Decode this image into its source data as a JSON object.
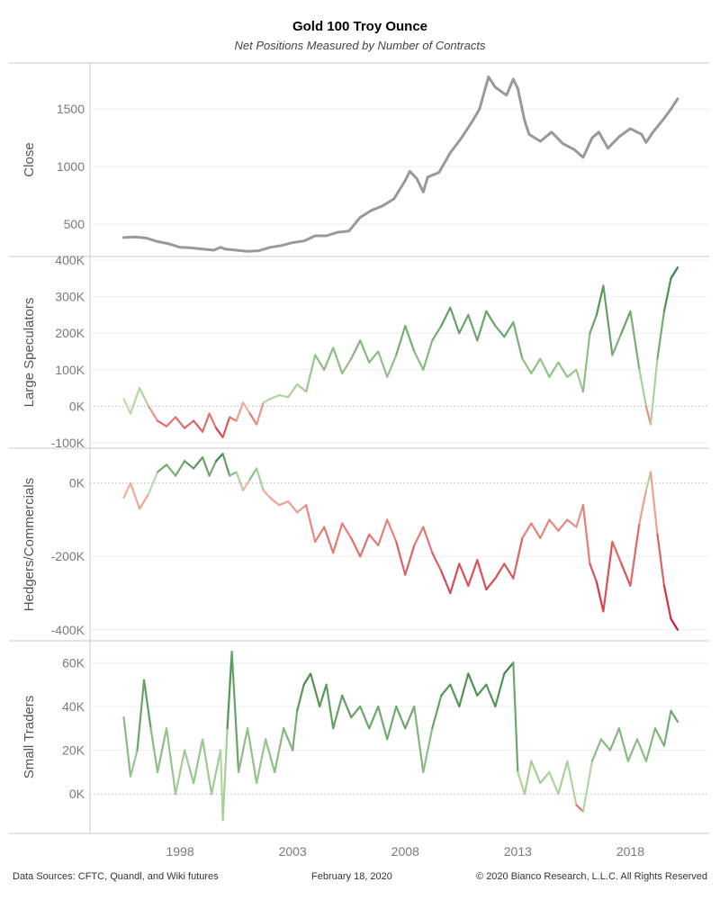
{
  "title": "Gold 100 Troy Ounce",
  "subtitle": "Net Positions Measured by Number of Contracts",
  "footer": {
    "sources": "Data Sources: CFTC, Quandl, and Wiki futures",
    "date": "February 18, 2020",
    "copyright": "© 2020 Bianco Research, L.L.C. All Rights Reserved"
  },
  "colors": {
    "close_line": "#999999",
    "positive_light": "#b9dba8",
    "positive_dark": "#2a7a38",
    "negative_light": "#f4b7a0",
    "negative_dark": "#c9142c",
    "zero_line": "#bbbbbb"
  },
  "chart_data": [
    {
      "type": "line",
      "ylabel": "Close",
      "ylim": [
        220,
        1900
      ],
      "yticks": [
        500,
        1000,
        1500
      ],
      "ytick_labels": [
        "500",
        "1000",
        "1500"
      ],
      "xticks": [
        1998,
        2003,
        2008,
        2013,
        2018
      ],
      "xtick_labels": [
        "1998",
        "2003",
        "2008",
        "2013",
        "2018"
      ],
      "grid": true,
      "color_mode": "solid",
      "x": [
        1995.5,
        1996.0,
        1996.5,
        1997.0,
        1997.5,
        1998.0,
        1998.5,
        1999.0,
        1999.5,
        1999.8,
        2000.0,
        2000.5,
        2001.0,
        2001.5,
        2002.0,
        2002.5,
        2003.0,
        2003.5,
        2004.0,
        2004.5,
        2005.0,
        2005.5,
        2006.0,
        2006.5,
        2007.0,
        2007.5,
        2008.0,
        2008.2,
        2008.5,
        2008.8,
        2009.0,
        2009.5,
        2010.0,
        2010.5,
        2011.0,
        2011.3,
        2011.7,
        2012.0,
        2012.5,
        2012.8,
        2013.0,
        2013.3,
        2013.5,
        2014.0,
        2014.5,
        2015.0,
        2015.5,
        2015.9,
        2016.3,
        2016.6,
        2017.0,
        2017.5,
        2018.0,
        2018.5,
        2018.7,
        2019.0,
        2019.5,
        2019.8,
        2020.1
      ],
      "y": [
        385,
        390,
        380,
        350,
        330,
        300,
        295,
        285,
        275,
        300,
        285,
        275,
        265,
        270,
        300,
        315,
        340,
        355,
        400,
        400,
        430,
        440,
        560,
        620,
        660,
        720,
        880,
        960,
        900,
        780,
        910,
        950,
        1120,
        1250,
        1400,
        1500,
        1780,
        1690,
        1620,
        1760,
        1680,
        1400,
        1280,
        1220,
        1300,
        1200,
        1150,
        1080,
        1250,
        1300,
        1160,
        1260,
        1330,
        1280,
        1210,
        1300,
        1420,
        1500,
        1590
      ]
    },
    {
      "type": "line",
      "ylabel": "Large Speculators",
      "ylim": [
        -115000,
        410000
      ],
      "yticks": [
        -100000,
        0,
        100000,
        200000,
        300000,
        400000
      ],
      "ytick_labels": [
        "-100K",
        "0K",
        "100K",
        "200K",
        "300K",
        "400K"
      ],
      "xticks": [
        1998,
        2003,
        2008,
        2013,
        2018
      ],
      "grid": true,
      "color_mode": "diverging",
      "color_domain": [
        -100000,
        400000
      ],
      "x": [
        1995.5,
        1995.8,
        1996.2,
        1996.6,
        1997.0,
        1997.4,
        1997.8,
        1998.2,
        1998.6,
        1999.0,
        1999.3,
        1999.6,
        1999.9,
        2000.2,
        2000.5,
        2000.8,
        2001.1,
        2001.4,
        2001.7,
        2002.0,
        2002.4,
        2002.8,
        2003.2,
        2003.6,
        2004.0,
        2004.4,
        2004.8,
        2005.2,
        2005.6,
        2006.0,
        2006.4,
        2006.8,
        2007.2,
        2007.6,
        2008.0,
        2008.4,
        2008.8,
        2009.2,
        2009.6,
        2010.0,
        2010.4,
        2010.8,
        2011.2,
        2011.6,
        2012.0,
        2012.4,
        2012.8,
        2013.2,
        2013.6,
        2014.0,
        2014.4,
        2014.8,
        2015.2,
        2015.6,
        2015.9,
        2016.2,
        2016.5,
        2016.8,
        2017.2,
        2017.6,
        2018.0,
        2018.4,
        2018.7,
        2018.9,
        2019.2,
        2019.5,
        2019.8,
        2020.1
      ],
      "y": [
        20000,
        -20000,
        50000,
        0,
        -40000,
        -55000,
        -30000,
        -60000,
        -40000,
        -70000,
        -20000,
        -60000,
        -85000,
        -30000,
        -40000,
        10000,
        -20000,
        -50000,
        10000,
        20000,
        30000,
        25000,
        60000,
        40000,
        140000,
        100000,
        160000,
        90000,
        130000,
        180000,
        120000,
        150000,
        80000,
        140000,
        220000,
        150000,
        100000,
        180000,
        220000,
        270000,
        200000,
        250000,
        180000,
        260000,
        220000,
        190000,
        230000,
        130000,
        90000,
        130000,
        80000,
        120000,
        80000,
        100000,
        40000,
        200000,
        250000,
        330000,
        140000,
        200000,
        260000,
        100000,
        0,
        -50000,
        130000,
        260000,
        350000,
        380000
      ]
    },
    {
      "type": "line",
      "ylabel": "Hedgers/Commercials",
      "ylim": [
        -430000,
        95000
      ],
      "yticks": [
        -400000,
        -200000,
        0
      ],
      "ytick_labels": [
        "-400K",
        "-200K",
        "0K"
      ],
      "xticks": [
        1998,
        2003,
        2008,
        2013,
        2018
      ],
      "grid": true,
      "color_mode": "diverging",
      "color_domain": [
        -400000,
        80000
      ],
      "x": [
        1995.5,
        1995.8,
        1996.2,
        1996.6,
        1997.0,
        1997.4,
        1997.8,
        1998.2,
        1998.6,
        1999.0,
        1999.3,
        1999.6,
        1999.9,
        2000.2,
        2000.5,
        2000.8,
        2001.1,
        2001.4,
        2001.7,
        2002.0,
        2002.4,
        2002.8,
        2003.2,
        2003.6,
        2004.0,
        2004.4,
        2004.8,
        2005.2,
        2005.6,
        2006.0,
        2006.4,
        2006.8,
        2007.2,
        2007.6,
        2008.0,
        2008.4,
        2008.8,
        2009.2,
        2009.6,
        2010.0,
        2010.4,
        2010.8,
        2011.2,
        2011.6,
        2012.0,
        2012.4,
        2012.8,
        2013.2,
        2013.6,
        2014.0,
        2014.4,
        2014.8,
        2015.2,
        2015.6,
        2015.9,
        2016.2,
        2016.5,
        2016.8,
        2017.2,
        2017.6,
        2018.0,
        2018.4,
        2018.7,
        2018.9,
        2019.2,
        2019.5,
        2019.8,
        2020.1
      ],
      "y": [
        -40000,
        0,
        -70000,
        -30000,
        30000,
        50000,
        20000,
        60000,
        40000,
        70000,
        20000,
        60000,
        80000,
        20000,
        30000,
        -20000,
        10000,
        40000,
        -20000,
        -40000,
        -60000,
        -50000,
        -80000,
        -60000,
        -160000,
        -120000,
        -190000,
        -110000,
        -150000,
        -200000,
        -140000,
        -170000,
        -100000,
        -160000,
        -250000,
        -170000,
        -120000,
        -190000,
        -240000,
        -300000,
        -220000,
        -280000,
        -210000,
        -290000,
        -260000,
        -220000,
        -260000,
        -150000,
        -110000,
        -150000,
        -100000,
        -130000,
        -100000,
        -120000,
        -60000,
        -220000,
        -270000,
        -350000,
        -160000,
        -220000,
        -280000,
        -110000,
        -20000,
        30000,
        -140000,
        -280000,
        -370000,
        -400000
      ]
    },
    {
      "type": "line",
      "ylabel": "Small Traders",
      "ylim": [
        -18000,
        70000
      ],
      "yticks": [
        0,
        20000,
        40000,
        60000
      ],
      "ytick_labels": [
        "0K",
        "20K",
        "40K",
        "60K"
      ],
      "xticks": [
        1998,
        2003,
        2008,
        2013,
        2018
      ],
      "grid": true,
      "color_mode": "diverging",
      "color_domain": [
        -15000,
        65000
      ],
      "x": [
        1995.5,
        1995.8,
        1996.1,
        1996.4,
        1996.7,
        1997.0,
        1997.4,
        1997.8,
        1998.2,
        1998.6,
        1999.0,
        1999.4,
        1999.8,
        1999.9,
        2000.1,
        2000.3,
        2000.6,
        2001.0,
        2001.4,
        2001.8,
        2002.2,
        2002.6,
        2003.0,
        2003.2,
        2003.5,
        2003.8,
        2004.2,
        2004.5,
        2004.8,
        2005.2,
        2005.6,
        2006.0,
        2006.4,
        2006.8,
        2007.2,
        2007.6,
        2008.0,
        2008.4,
        2008.8,
        2009.2,
        2009.6,
        2010.0,
        2010.4,
        2010.8,
        2011.2,
        2011.6,
        2012.0,
        2012.4,
        2012.8,
        2013.0,
        2013.3,
        2013.6,
        2014.0,
        2014.4,
        2014.8,
        2015.2,
        2015.6,
        2015.9,
        2016.3,
        2016.7,
        2017.1,
        2017.5,
        2017.9,
        2018.3,
        2018.7,
        2019.1,
        2019.5,
        2019.8,
        2020.1
      ],
      "y": [
        35000,
        8000,
        20000,
        52000,
        30000,
        10000,
        30000,
        0,
        20000,
        5000,
        25000,
        0,
        20000,
        -12000,
        30000,
        65000,
        10000,
        30000,
        5000,
        25000,
        10000,
        30000,
        20000,
        38000,
        50000,
        55000,
        40000,
        50000,
        30000,
        45000,
        35000,
        40000,
        30000,
        40000,
        25000,
        40000,
        30000,
        40000,
        10000,
        30000,
        45000,
        50000,
        40000,
        55000,
        45000,
        50000,
        40000,
        55000,
        60000,
        10000,
        0,
        15000,
        5000,
        10000,
        0,
        15000,
        -5000,
        -8000,
        15000,
        25000,
        20000,
        30000,
        15000,
        25000,
        15000,
        30000,
        22000,
        38000,
        33000
      ]
    }
  ]
}
